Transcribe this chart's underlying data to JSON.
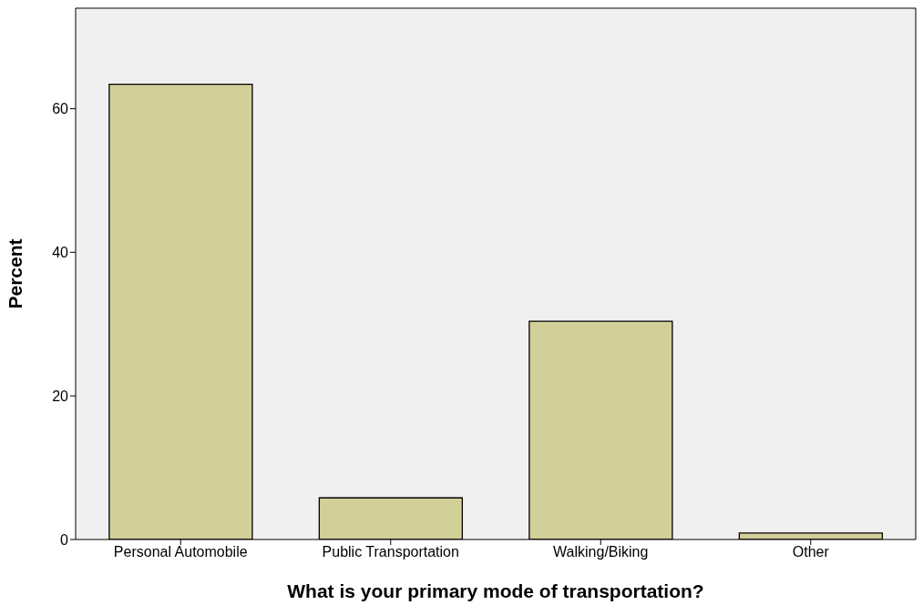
{
  "chart_data": {
    "type": "bar",
    "xlabel": "What is your primary mode of transportation?",
    "ylabel": "Percent",
    "categories": [
      "Personal Automobile",
      "Public Transportation",
      "Walking/Biking",
      "Other"
    ],
    "values": [
      63.4,
      5.8,
      30.4,
      0.9
    ],
    "color": "#d3cf99",
    "ylim": [
      0,
      74
    ],
    "yticks": [
      0,
      20,
      40,
      60
    ],
    "grid": false
  }
}
